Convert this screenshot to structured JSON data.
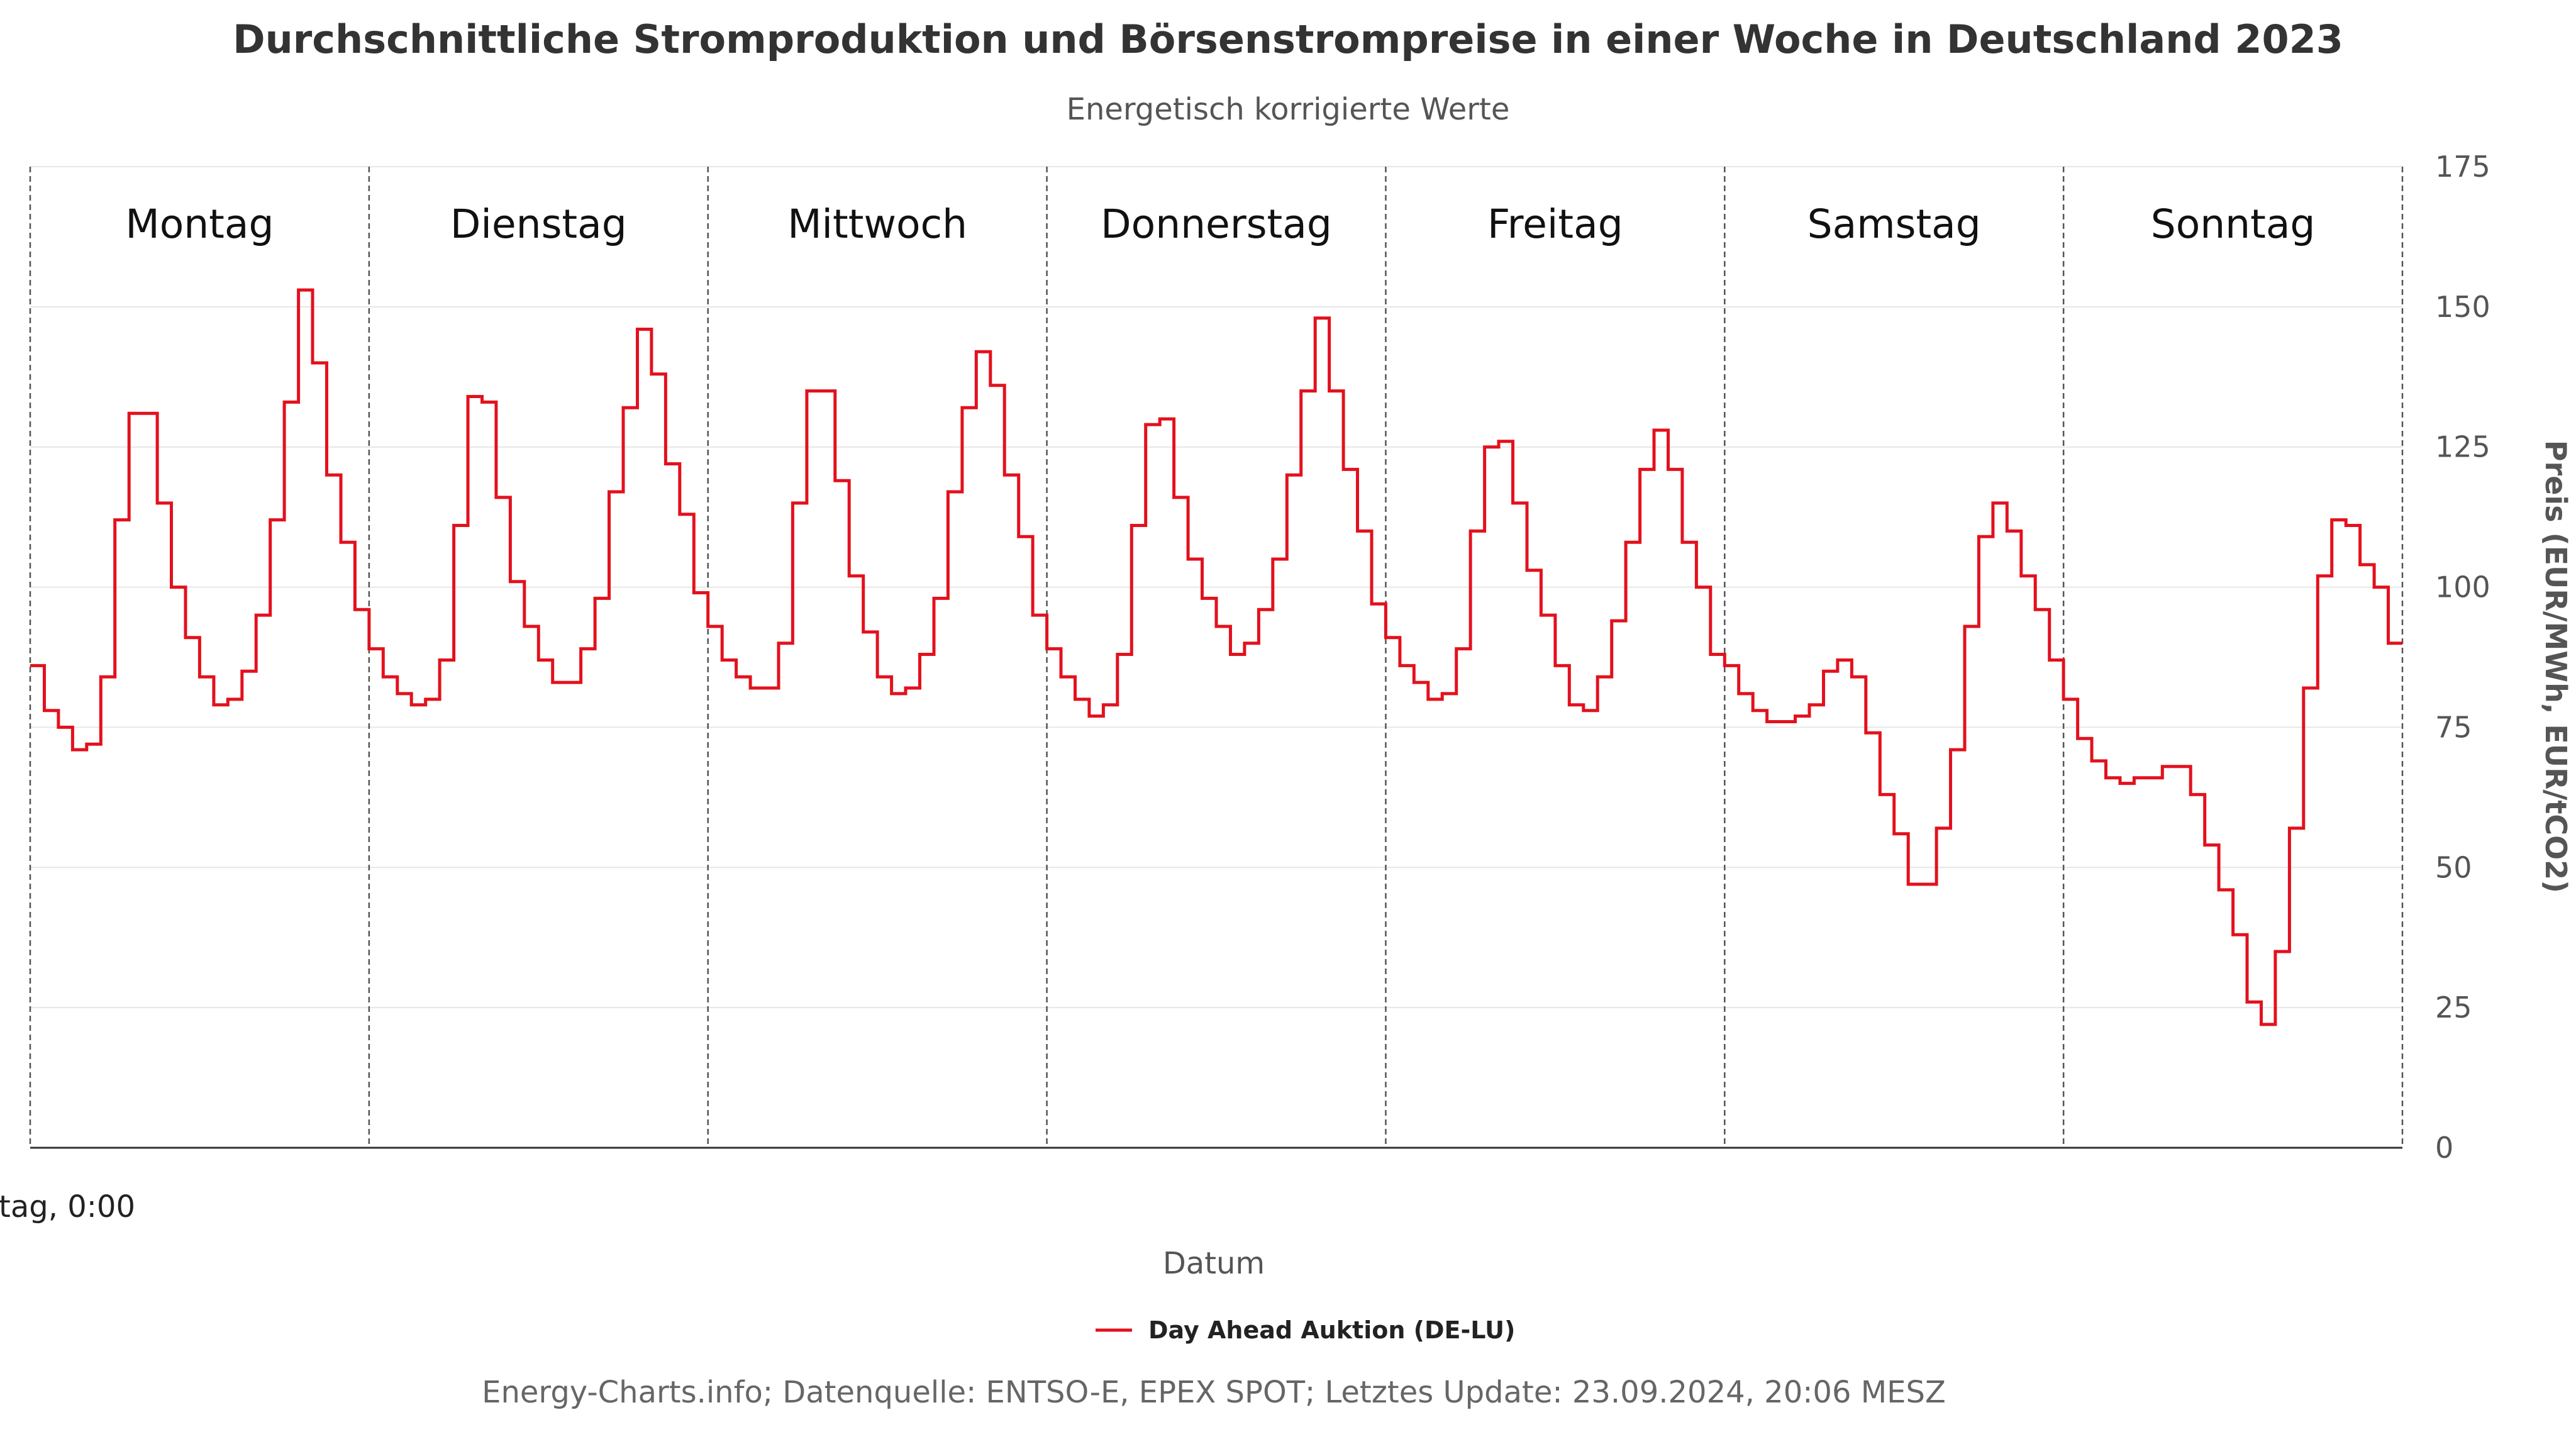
{
  "chart_data": {
    "type": "line",
    "title": "Durchschnittliche Stromproduktion und Börsenstrompreise in einer Woche in Deutschland 2023",
    "subtitle": "Energetisch korrigierte Werte",
    "xlabel": "Datum",
    "ylabel": "Preis (EUR/MWh, EUR/tCO2)",
    "first_x_label": "tag, 0:00",
    "days": [
      "Montag",
      "Dienstag",
      "Mittwoch",
      "Donnerstag",
      "Freitag",
      "Samstag",
      "Sonntag"
    ],
    "yticks": [
      0,
      25,
      50,
      75,
      100,
      125,
      150,
      175
    ],
    "ylim": [
      0,
      175
    ],
    "grid": true,
    "legend_position": "bottom-center",
    "step": true,
    "x_unit": "hour of week (0-167)",
    "series": [
      {
        "name": "Day Ahead Auktion (DE-LU)",
        "color": "#e3111d",
        "values": [
          86,
          78,
          75,
          71,
          72,
          84,
          112,
          131,
          131,
          115,
          100,
          91,
          84,
          79,
          80,
          85,
          95,
          112,
          133,
          153,
          140,
          120,
          108,
          96,
          89,
          84,
          81,
          79,
          80,
          87,
          111,
          134,
          133,
          116,
          101,
          93,
          87,
          83,
          83,
          89,
          98,
          117,
          132,
          146,
          138,
          122,
          113,
          99,
          93,
          87,
          84,
          82,
          82,
          90,
          115,
          135,
          135,
          119,
          102,
          92,
          84,
          81,
          82,
          88,
          98,
          117,
          132,
          142,
          136,
          120,
          109,
          95,
          89,
          84,
          80,
          77,
          79,
          88,
          111,
          129,
          130,
          116,
          105,
          98,
          93,
          88,
          90,
          96,
          105,
          120,
          135,
          148,
          135,
          121,
          110,
          97,
          91,
          86,
          83,
          80,
          81,
          89,
          110,
          125,
          126,
          115,
          103,
          95,
          86,
          79,
          78,
          84,
          94,
          108,
          121,
          128,
          121,
          108,
          100,
          88,
          86,
          81,
          78,
          76,
          76,
          77,
          79,
          85,
          87,
          84,
          74,
          63,
          56,
          47,
          47,
          57,
          71,
          93,
          109,
          115,
          110,
          102,
          96,
          87,
          80,
          73,
          69,
          66,
          65,
          66,
          66,
          68,
          68,
          63,
          54,
          46,
          38,
          26,
          22,
          35,
          57,
          82,
          102,
          112,
          111,
          104,
          100,
          90
        ]
      }
    ]
  },
  "credits": "Energy-Charts.info; Datenquelle: ENTSO-E, EPEX SPOT; Letztes Update: 23.09.2024, 20:06 MESZ"
}
